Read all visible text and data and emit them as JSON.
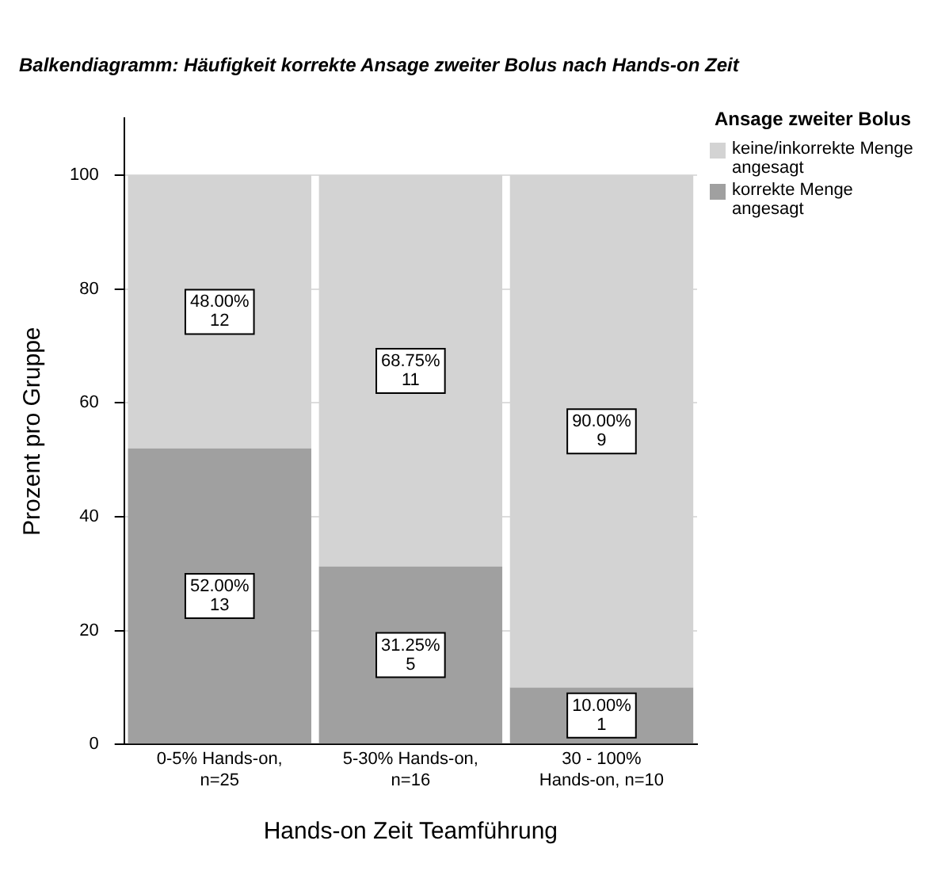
{
  "chart_data": {
    "type": "bar",
    "stacked": true,
    "title": "Balkendiagramm: Häufigkeit korrekte Ansage zweiter Bolus nach Hands-on Zeit",
    "xlabel": "Hands-on Zeit Teamführung",
    "ylabel": "Prozent pro Gruppe",
    "legend_title": "Ansage zweiter Bolus",
    "categories": [
      "0-5% Hands-on, n=25",
      "5-30% Hands-on, n=16",
      "30 - 100% Hands-on, n=10"
    ],
    "series": [
      {
        "name": "korrekte Menge angesagt",
        "color": "#a0a0a0",
        "values": [
          52,
          31.25,
          10
        ],
        "value_labels": [
          "52.00%\n13",
          "31.25%\n5",
          "10.00%\n1"
        ]
      },
      {
        "name": "keine/inkorrekte Menge angesagt",
        "color": "#d3d3d3",
        "values": [
          48,
          68.75,
          90
        ],
        "value_labels": [
          "48.00%\n12",
          "68.75%\n11",
          "90.00%\n9"
        ]
      }
    ],
    "ylim": [
      0,
      110
    ],
    "yticks": [
      0,
      20,
      40,
      60,
      80,
      100
    ],
    "grid": "y",
    "legend": "top right"
  }
}
